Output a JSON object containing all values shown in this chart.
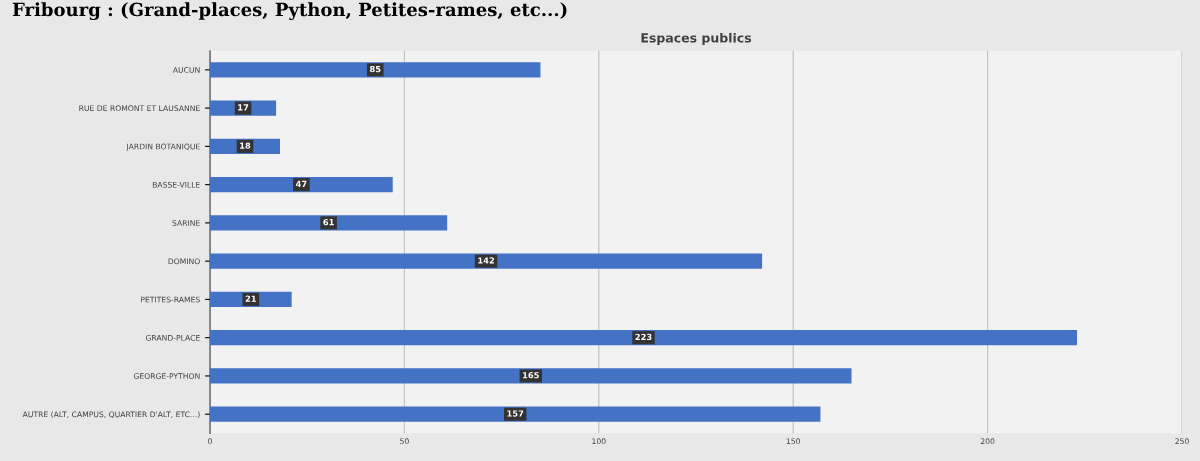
{
  "chart_data": {
    "type": "bar",
    "orientation": "horizontal",
    "title": "Espaces publics",
    "annotations": [
      "Fribourg : (Grand-places, Python, Petites-rames, etc...)"
    ],
    "categories": [
      "AUCUN",
      "RUE DE ROMONT ET LAUSANNE",
      "JARDIN BOTANIQUE",
      "BASSE-VILLE",
      "SARINE",
      "DOMINO",
      "PETITES-RAMES",
      "GRAND-PLACE",
      "GEORGE-PYTHON",
      "AUTRE (ALT, CAMPUS, QUARTIER D'ALT, ETC...)"
    ],
    "values": [
      85,
      17,
      18,
      47,
      61,
      142,
      21,
      223,
      165,
      157
    ],
    "color": "#4472c4",
    "xlim": [
      0,
      250
    ],
    "xticks": [
      0,
      50,
      100,
      150,
      200,
      250
    ],
    "grid": "x",
    "data_labels": true
  }
}
